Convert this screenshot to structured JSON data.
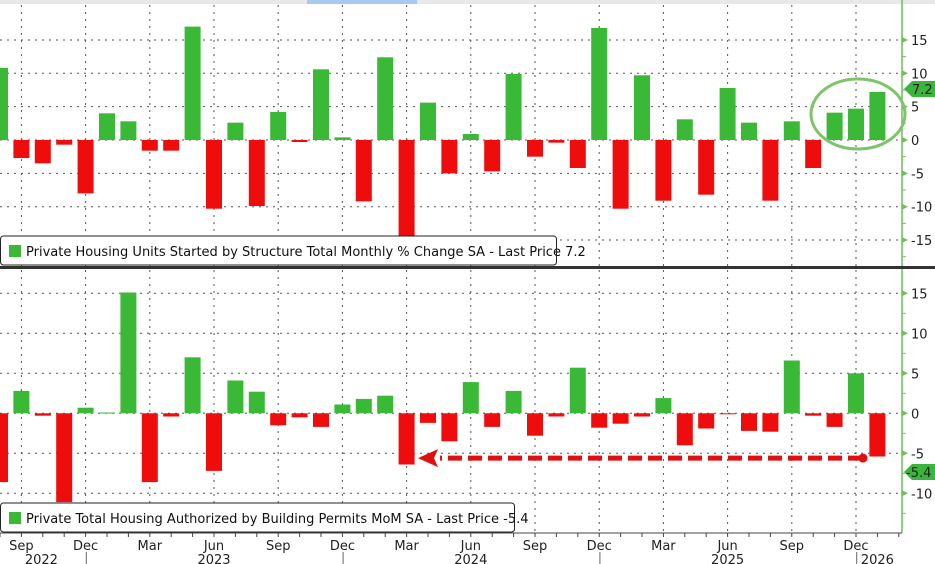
{
  "colors": {
    "positive": "#39b935",
    "negative": "#ee0c0c",
    "axis": "#6fbf5f",
    "tag": "#3cb53c",
    "circle": "#7cc56a",
    "arrow": "#e01010"
  },
  "chart_data": [
    {
      "type": "bar",
      "title": "Private Housing Units Started by Structure Total Monthly % Change SA",
      "legend": "Private Housing Units Started by Structure Total Monthly % Change SA - Last Price 7.2",
      "last_price": "7.2",
      "last_value": 7.2,
      "ylim": [
        -18.7,
        20.2
      ],
      "yticks": [
        "15",
        "10",
        "5",
        "0",
        "-5",
        "-10",
        "-15"
      ],
      "ytick_values": [
        15,
        10,
        5,
        0,
        -5,
        -10,
        -15
      ],
      "start_month": "2022-08",
      "values": [
        10.8,
        -2.7,
        -3.5,
        -0.7,
        -8.0,
        4.0,
        2.8,
        -1.6,
        -1.6,
        17.0,
        -10.3,
        2.6,
        -9.9,
        4.2,
        -0.3,
        10.6,
        0.4,
        -9.2,
        12.4,
        -14.7,
        5.6,
        -5.0,
        0.9,
        -4.7,
        9.9,
        -2.5,
        -0.4,
        -4.2,
        16.8,
        -10.3,
        9.7,
        -9.1,
        3.1,
        -8.2,
        7.8,
        2.6,
        -9.1,
        2.8,
        -4.2,
        4.1,
        4.7,
        7.2
      ],
      "annotation": "circle around last three bars (Nov 2025 - Jan 2026)"
    },
    {
      "type": "bar",
      "title": "Private Total Housing Authorized by Building Permits MoM SA",
      "legend": "Private Total Housing Authorized by Building Permits MoM SA - Last Price -5.4",
      "last_price": "-5.4",
      "last_value": -5.4,
      "ylim": [
        -14.6,
        17.9
      ],
      "yticks": [
        "15",
        "10",
        "5",
        "0",
        "-5",
        "-10"
      ],
      "ytick_values": [
        15,
        10,
        5,
        0,
        -5,
        -10
      ],
      "start_month": "2022-08",
      "values": [
        -8.6,
        2.8,
        -0.3,
        -11.1,
        0.7,
        0.1,
        15.1,
        -8.6,
        -0.4,
        7.0,
        -7.2,
        4.1,
        2.7,
        -1.5,
        -0.5,
        -1.7,
        1.1,
        1.8,
        2.2,
        -6.4,
        -1.2,
        -3.5,
        3.9,
        -1.7,
        2.8,
        -2.8,
        -0.4,
        5.7,
        -1.8,
        -1.3,
        -0.4,
        1.9,
        -4.0,
        -1.9,
        -0.1,
        -2.2,
        -2.3,
        6.6,
        -0.3,
        -1.7,
        5.0,
        -5.4
      ],
      "annotation": "dashed arrow at -5.4 level from Jan 2026 back to Mar 2024"
    }
  ],
  "x_axis": {
    "month_labels": [
      {
        "label": "Sep",
        "index": 1
      },
      {
        "label": "Dec",
        "index": 4
      },
      {
        "label": "Mar",
        "index": 7
      },
      {
        "label": "Jun",
        "index": 10
      },
      {
        "label": "Sep",
        "index": 13
      },
      {
        "label": "Dec",
        "index": 16
      },
      {
        "label": "Mar",
        "index": 19
      },
      {
        "label": "Jun",
        "index": 22
      },
      {
        "label": "Sep",
        "index": 25
      },
      {
        "label": "Dec",
        "index": 28
      },
      {
        "label": "Mar",
        "index": 31
      },
      {
        "label": "Jun",
        "index": 34
      },
      {
        "label": "Sep",
        "index": 37
      },
      {
        "label": "Dec",
        "index": 40
      }
    ],
    "year_labels": [
      {
        "label": "2022",
        "index": 1
      },
      {
        "label": "2023",
        "index": 10
      },
      {
        "label": "2024",
        "index": 22
      },
      {
        "label": "2025",
        "index": 34
      },
      {
        "label": "2026",
        "index": 41
      }
    ]
  }
}
